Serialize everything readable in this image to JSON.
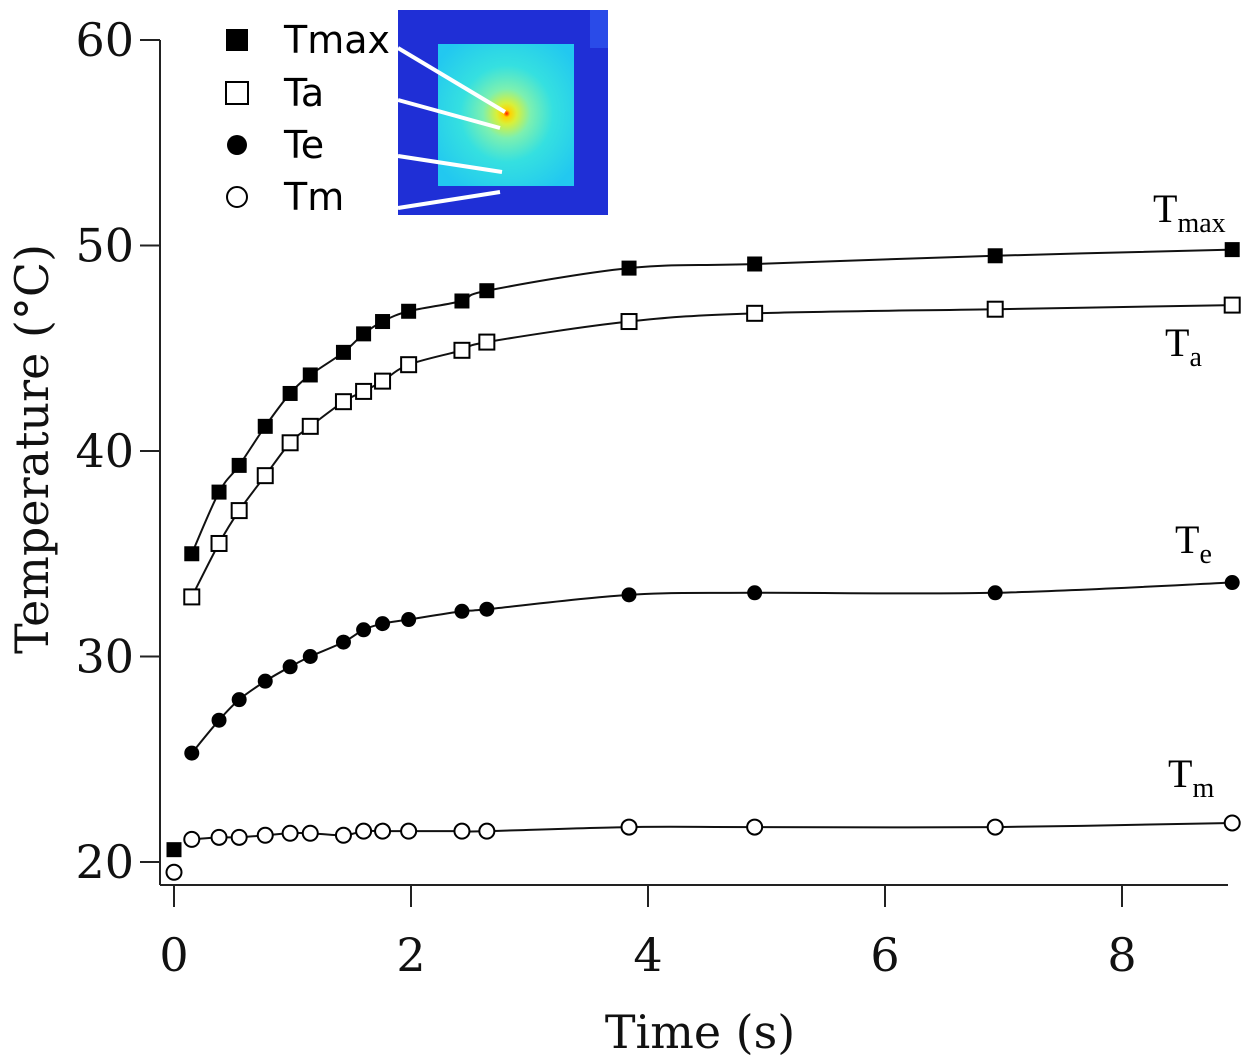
{
  "chart_data": {
    "type": "scatter",
    "xlabel": "Time (s)",
    "ylabel": "Temperature (°C)",
    "xlim": [
      -0.1,
      8.9
    ],
    "ylim": [
      19,
      61
    ],
    "x_ticks": [
      0,
      2,
      4,
      6,
      8
    ],
    "y_ticks": [
      20,
      30,
      40,
      50,
      60
    ],
    "grid": false,
    "legend_position": "top-left",
    "inset": "thermal image (top-left)",
    "series": [
      {
        "name": "Tmax",
        "marker": "filled-square",
        "label_main": "T",
        "label_sub": "max",
        "x": [
          0.0,
          0.15,
          0.38,
          0.55,
          0.77,
          0.98,
          1.15,
          1.43,
          1.6,
          1.76,
          1.98,
          2.43,
          2.64,
          3.84,
          4.9,
          6.93,
          8.93
        ],
        "y": [
          20.6,
          35.0,
          38.0,
          39.3,
          41.2,
          42.8,
          43.7,
          44.8,
          45.7,
          46.3,
          46.8,
          47.3,
          47.8,
          48.9,
          49.1,
          49.5,
          49.8
        ]
      },
      {
        "name": "Ta",
        "marker": "open-square",
        "label_main": "T",
        "label_sub": "a",
        "x": [
          0.15,
          0.38,
          0.55,
          0.77,
          0.98,
          1.15,
          1.43,
          1.6,
          1.76,
          1.98,
          2.43,
          2.64,
          3.84,
          4.9,
          6.93,
          8.93
        ],
        "y": [
          32.9,
          35.5,
          37.1,
          38.8,
          40.4,
          41.2,
          42.4,
          42.9,
          43.4,
          44.2,
          44.9,
          45.3,
          46.3,
          46.7,
          46.9,
          47.1
        ]
      },
      {
        "name": "Te",
        "marker": "filled-circle",
        "label_main": "T",
        "label_sub": "e",
        "x": [
          0.15,
          0.38,
          0.55,
          0.77,
          0.98,
          1.15,
          1.43,
          1.6,
          1.76,
          1.98,
          2.43,
          2.64,
          3.84,
          4.9,
          6.93,
          8.93
        ],
        "y": [
          25.3,
          26.9,
          27.9,
          28.8,
          29.5,
          30.0,
          30.7,
          31.3,
          31.6,
          31.8,
          32.2,
          32.3,
          33.0,
          33.1,
          33.1,
          33.6
        ]
      },
      {
        "name": "Tm",
        "marker": "open-circle",
        "label_main": "T",
        "label_sub": "m",
        "x": [
          0.0,
          0.15,
          0.38,
          0.55,
          0.77,
          0.98,
          1.15,
          1.43,
          1.6,
          1.76,
          1.98,
          2.43,
          2.64,
          3.84,
          4.9,
          6.93,
          8.93
        ],
        "y": [
          19.5,
          21.1,
          21.2,
          21.2,
          21.3,
          21.4,
          21.4,
          21.3,
          21.5,
          21.5,
          21.5,
          21.5,
          21.5,
          21.7,
          21.7,
          21.7,
          21.9
        ]
      }
    ]
  },
  "colors": {
    "axis": "#222222",
    "marker": "#000000",
    "curve": "#111111"
  }
}
